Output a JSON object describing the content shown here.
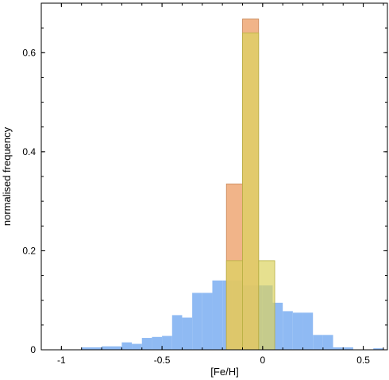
{
  "chart_data": {
    "type": "histogram",
    "xlabel": "[Fe/H]",
    "ylabel": "normalised frequency",
    "xlim": [
      -1.1,
      0.62
    ],
    "ylim": [
      0,
      0.7
    ],
    "x_ticks": [
      {
        "value": -1,
        "label": "-1"
      },
      {
        "value": -0.5,
        "label": "-0.5"
      },
      {
        "value": 0,
        "label": "0"
      },
      {
        "value": 0.5,
        "label": "0.5"
      }
    ],
    "y_ticks": [
      {
        "value": 0,
        "label": "0"
      },
      {
        "value": 0.2,
        "label": "0.2"
      },
      {
        "value": 0.4,
        "label": "0.4"
      },
      {
        "value": 0.6,
        "label": "0.6"
      }
    ],
    "grid": false,
    "series": [
      {
        "color": "#8fbaf3",
        "edges": [
          -0.9,
          -0.8,
          -0.7,
          -0.65,
          -0.6,
          -0.55,
          -0.5,
          -0.45,
          -0.4,
          -0.35,
          -0.3,
          -0.25,
          -0.2,
          -0.15,
          -0.1,
          -0.05,
          0.0,
          0.05,
          0.1,
          0.15,
          0.2,
          0.25,
          0.3,
          0.35,
          0.4,
          0.45,
          0.5,
          0.55,
          0.6
        ],
        "values": [
          0.005,
          0.007,
          0.015,
          0.012,
          0.024,
          0.026,
          0.028,
          0.07,
          0.065,
          0.115,
          0.115,
          0.14,
          0.14,
          0.14,
          0.13,
          0.13,
          0.13,
          0.095,
          0.078,
          0.075,
          0.075,
          0.03,
          0.03,
          0.005,
          0.005,
          0.0,
          0.0,
          0.003
        ]
      },
      {
        "color": "#eea774",
        "edges": [
          -0.18,
          -0.1,
          -0.02
        ],
        "values": [
          0.335,
          0.668
        ]
      },
      {
        "color": "#dcd35f",
        "edges": [
          -0.18,
          -0.1,
          -0.02,
          0.06
        ],
        "values": [
          0.18,
          0.64,
          0.18
        ]
      }
    ]
  }
}
